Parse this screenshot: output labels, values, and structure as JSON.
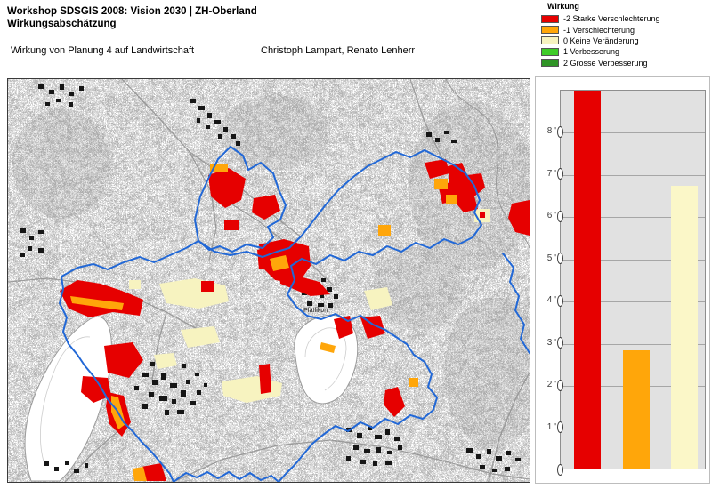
{
  "header": {
    "title_line1": "Workshop SDSGIS 2008: Vision 2030 | ZH-Oberland",
    "title_line2": "Wirkungsabschätzung",
    "subtitle": "Wirkung von Planung 4 auf Landwirtschaft",
    "authors": "Christoph Lampart, Renato Lenherr"
  },
  "legend": {
    "title": "Wirkung",
    "items": [
      {
        "value": -2,
        "label": "-2 Starke Verschlechterung",
        "color": "#e60000"
      },
      {
        "value": -1,
        "label": "-1 Verschlechterung",
        "color": "#ffa60a"
      },
      {
        "value": 0,
        "label": "0 Keine Veränderung",
        "color": "#f7f3c0"
      },
      {
        "value": 1,
        "label": "1 Verbesserung",
        "color": "#3ecc28"
      },
      {
        "value": 2,
        "label": "2 Grosse Verbesserung",
        "color": "#2f9426"
      }
    ]
  },
  "map": {
    "boundary_color": "#2268d6",
    "label_pfaeffikon": "Pfäffikon",
    "effect_classes_shown": [
      "-2 Starke Verschlechterung",
      "-1 Verschlechterung",
      "0 Keine Veränderung"
    ]
  },
  "chart_data": {
    "type": "bar",
    "title": "",
    "categories": [
      "-2 Starke Verschlechterung",
      "-1 Verschlechterung",
      "0 Keine Veränderung"
    ],
    "values": [
      9.0,
      2.8,
      6.7
    ],
    "colors": [
      "#e60000",
      "#ffa60a",
      "#fbf7c8"
    ],
    "ylim": [
      0,
      9
    ],
    "y_ticks": [
      8,
      7,
      6,
      5,
      4,
      3,
      2,
      1
    ],
    "y_tick_suffix": " '",
    "zero_marker": "0",
    "xlabel": "",
    "ylabel": "",
    "grid": true,
    "legend_position": "none",
    "plot_bg": "#e1e1e1",
    "note": "red bar reaches the top of the plot area (clipped at ~9)"
  }
}
